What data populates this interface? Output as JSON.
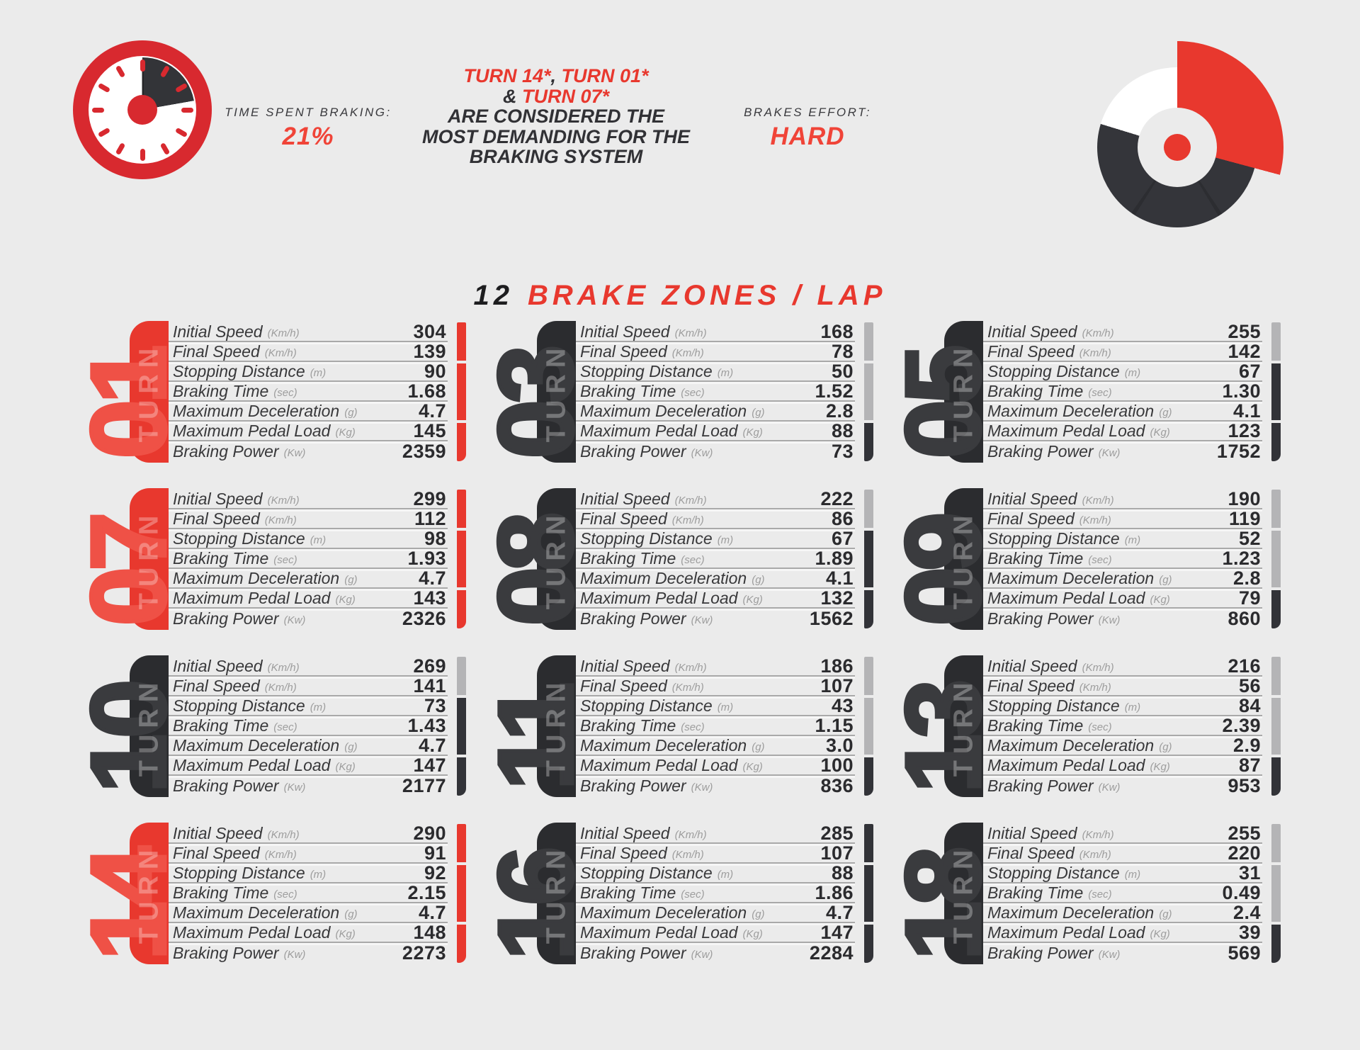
{
  "colors": {
    "red": "#e8382e",
    "red_light": "#ef5146",
    "accent_red": "#f04438",
    "crimson": "#d8292f",
    "dark": "#323338",
    "bar_gray": "#b4b4b6",
    "background": "#ebebeb"
  },
  "header": {
    "left_stat": {
      "label": "TIME SPENT BRAKING:",
      "value": "21%"
    },
    "right_stat": {
      "label": "BRAKES EFFORT:",
      "value": "HARD"
    },
    "headline_lines": [
      [
        {
          "t": "TURN 14*",
          "red": true
        },
        {
          "t": ", ",
          "red": false
        },
        {
          "t": "TURN 01*",
          "red": true
        }
      ],
      [
        {
          "t": "& ",
          "red": false
        },
        {
          "t": "TURN 07*",
          "red": true
        }
      ],
      [
        {
          "t": "ARE CONSIDERED THE",
          "red": false
        }
      ],
      [
        {
          "t": "MOST DEMANDING FOR THE",
          "red": false
        }
      ],
      [
        {
          "t": "BRAKING SYSTEM",
          "red": false
        }
      ]
    ],
    "clock_icon": "stopwatch showing 21% braking time",
    "gauge_icon": "brake effort gauge"
  },
  "title": {
    "prefix": "12",
    "main": "BRAKE ZONES / LAP"
  },
  "turn_word": "TURN",
  "metrics": [
    {
      "label": "Initial Speed",
      "unit": "(Km/h)"
    },
    {
      "label": "Final Speed",
      "unit": "(Km/h)"
    },
    {
      "label": "Stopping Distance",
      "unit": "(m)"
    },
    {
      "label": "Braking Time",
      "unit": "(sec)"
    },
    {
      "label": "Maximum Deceleration",
      "unit": "(g)"
    },
    {
      "label": "Maximum Pedal Load",
      "unit": "(Kg)"
    },
    {
      "label": "Braking Power",
      "unit": "(Kw)"
    }
  ],
  "turns": [
    {
      "number": "01",
      "highlight": true,
      "values": [
        "304",
        "139",
        "90",
        "1.68",
        "4.7",
        "145",
        "2359"
      ],
      "bar": [
        "red",
        "red",
        "red"
      ]
    },
    {
      "number": "03",
      "highlight": false,
      "values": [
        "168",
        "78",
        "50",
        "1.52",
        "2.8",
        "88",
        "73"
      ],
      "bar": [
        "gray",
        "gray",
        "dark"
      ]
    },
    {
      "number": "05",
      "highlight": false,
      "values": [
        "255",
        "142",
        "67",
        "1.30",
        "4.1",
        "123",
        "1752"
      ],
      "bar": [
        "gray",
        "dark",
        "dark"
      ]
    },
    {
      "number": "07",
      "highlight": true,
      "values": [
        "299",
        "112",
        "98",
        "1.93",
        "4.7",
        "143",
        "2326"
      ],
      "bar": [
        "red",
        "red",
        "red"
      ]
    },
    {
      "number": "08",
      "highlight": false,
      "values": [
        "222",
        "86",
        "67",
        "1.89",
        "4.1",
        "132",
        "1562"
      ],
      "bar": [
        "gray",
        "dark",
        "dark"
      ]
    },
    {
      "number": "09",
      "highlight": false,
      "values": [
        "190",
        "119",
        "52",
        "1.23",
        "2.8",
        "79",
        "860"
      ],
      "bar": [
        "gray",
        "gray",
        "dark"
      ]
    },
    {
      "number": "10",
      "highlight": false,
      "values": [
        "269",
        "141",
        "73",
        "1.43",
        "4.7",
        "147",
        "2177"
      ],
      "bar": [
        "gray",
        "dark",
        "dark"
      ]
    },
    {
      "number": "11",
      "highlight": false,
      "values": [
        "186",
        "107",
        "43",
        "1.15",
        "3.0",
        "100",
        "836"
      ],
      "bar": [
        "gray",
        "gray",
        "dark"
      ]
    },
    {
      "number": "13",
      "highlight": false,
      "values": [
        "216",
        "56",
        "84",
        "2.39",
        "2.9",
        "87",
        "953"
      ],
      "bar": [
        "gray",
        "gray",
        "dark"
      ]
    },
    {
      "number": "14",
      "highlight": true,
      "values": [
        "290",
        "91",
        "92",
        "2.15",
        "4.7",
        "148",
        "2273"
      ],
      "bar": [
        "red",
        "red",
        "red"
      ]
    },
    {
      "number": "16",
      "highlight": false,
      "values": [
        "285",
        "107",
        "88",
        "1.86",
        "4.7",
        "147",
        "2284"
      ],
      "bar": [
        "dark",
        "dark",
        "dark"
      ]
    },
    {
      "number": "18",
      "highlight": false,
      "values": [
        "255",
        "220",
        "31",
        "0.49",
        "2.4",
        "39",
        "569"
      ],
      "bar": [
        "gray",
        "gray",
        "dark"
      ]
    }
  ],
  "chart_data": {
    "type": "table",
    "title": "12 BRAKE ZONES / LAP",
    "annotations": [
      "TIME SPENT BRAKING: 21%",
      "BRAKES EFFORT: HARD",
      "TURN 14*, TURN 01* & TURN 07* ARE CONSIDERED THE MOST DEMANDING FOR THE BRAKING SYSTEM"
    ],
    "columns": [
      "Turn",
      "Initial Speed (Km/h)",
      "Final Speed (Km/h)",
      "Stopping Distance (m)",
      "Braking Time (sec)",
      "Maximum Deceleration (g)",
      "Maximum Pedal Load (Kg)",
      "Braking Power (Kw)"
    ],
    "rows": [
      [
        "01",
        304,
        139,
        90,
        1.68,
        4.7,
        145,
        2359
      ],
      [
        "03",
        168,
        78,
        50,
        1.52,
        2.8,
        88,
        73
      ],
      [
        "05",
        255,
        142,
        67,
        1.3,
        4.1,
        123,
        1752
      ],
      [
        "07",
        299,
        112,
        98,
        1.93,
        4.7,
        143,
        2326
      ],
      [
        "08",
        222,
        86,
        67,
        1.89,
        4.1,
        132,
        1562
      ],
      [
        "09",
        190,
        119,
        52,
        1.23,
        2.8,
        79,
        860
      ],
      [
        "10",
        269,
        141,
        73,
        1.43,
        4.7,
        147,
        2177
      ],
      [
        "11",
        186,
        107,
        43,
        1.15,
        3.0,
        100,
        836
      ],
      [
        "13",
        216,
        56,
        84,
        2.39,
        2.9,
        87,
        953
      ],
      [
        "14",
        290,
        91,
        92,
        2.15,
        4.7,
        148,
        2273
      ],
      [
        "16",
        285,
        107,
        88,
        1.86,
        4.7,
        147,
        2284
      ],
      [
        "18",
        255,
        220,
        31,
        0.49,
        2.4,
        39,
        569
      ]
    ]
  }
}
